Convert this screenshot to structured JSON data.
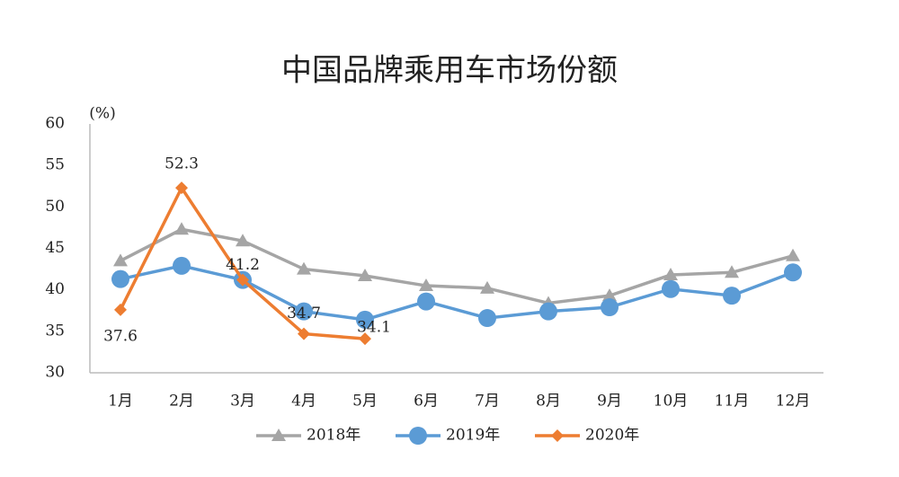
{
  "chart_data": {
    "type": "line",
    "title": "中国品牌乘用车市场份额",
    "y_unit": "(%)",
    "categories": [
      "1月",
      "2月",
      "3月",
      "4月",
      "5月",
      "6月",
      "7月",
      "8月",
      "9月",
      "10月",
      "11月",
      "12月"
    ],
    "series": [
      {
        "name": "2018年",
        "color": "#a5a5a5",
        "marker": "triangle",
        "values": [
          43.5,
          47.3,
          45.9,
          42.5,
          41.7,
          40.5,
          40.2,
          38.4,
          39.3,
          41.8,
          42.1,
          44.1
        ]
      },
      {
        "name": "2019年",
        "color": "#5b9bd5",
        "marker": "circle",
        "values": [
          41.3,
          42.9,
          41.2,
          37.4,
          36.4,
          38.6,
          36.6,
          37.4,
          37.9,
          40.1,
          39.3,
          42.1
        ]
      },
      {
        "name": "2020年",
        "color": "#ed7d31",
        "marker": "diamond",
        "data_labels": true,
        "values": [
          37.6,
          52.3,
          41.2,
          34.7,
          34.1,
          null,
          null,
          null,
          null,
          null,
          null,
          null
        ]
      }
    ],
    "ylim": [
      30,
      60
    ],
    "yticks": [
      30,
      35,
      40,
      45,
      50,
      55,
      60
    ],
    "grid": false,
    "legend": "bottom"
  }
}
